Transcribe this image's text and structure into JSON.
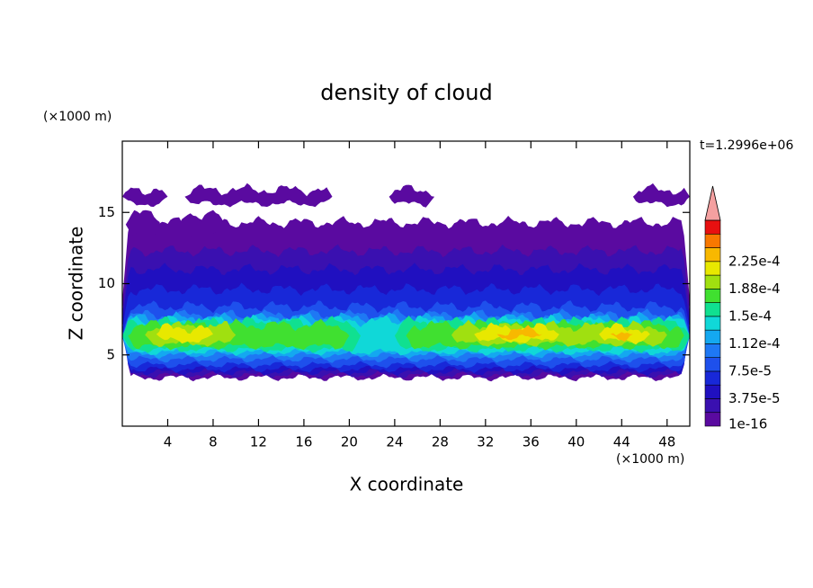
{
  "chart_data": {
    "type": "contour",
    "title": "density of cloud",
    "x_label": "X coordinate",
    "y_label": "Z coordinate",
    "x_unit": "(×1000 m)",
    "y_unit": "(×1000 m)",
    "time_label": "t=1.2996e+06",
    "xlim": [
      0,
      50
    ],
    "ylim": [
      0,
      20
    ],
    "xticks": [
      4,
      8,
      12,
      16,
      20,
      24,
      28,
      32,
      36,
      40,
      44,
      48
    ],
    "yticks": [
      5,
      10,
      15
    ],
    "colorbar": {
      "colors": [
        "#5a0aa0",
        "#3a10b0",
        "#2010c0",
        "#1828d8",
        "#1e50ec",
        "#1e78f4",
        "#14a8f0",
        "#10d8d8",
        "#10e090",
        "#40e030",
        "#a0e010",
        "#e8e800",
        "#f8b800",
        "#f87800",
        "#e81010"
      ],
      "extend_color": "#f4a0a0",
      "ticks": [
        {
          "value": 1e-16,
          "label": "1e-16"
        },
        {
          "value": 3.75e-05,
          "label": "3.75e-5"
        },
        {
          "value": 7.5e-05,
          "label": "7.5e-5"
        },
        {
          "value": 0.000112,
          "label": "1.12e-4"
        },
        {
          "value": 0.00015,
          "label": "1.5e-4"
        },
        {
          "value": 0.000188,
          "label": "1.88e-4"
        },
        {
          "value": 0.000225,
          "label": "2.25e-4"
        }
      ]
    }
  }
}
